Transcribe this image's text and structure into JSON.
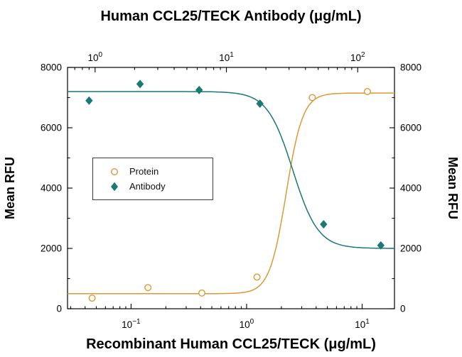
{
  "chart_data": {
    "type": "line",
    "top_axis": {
      "label": "Human CCL25/TECK Antibody (μg/mL)",
      "scale": "log",
      "tick_exponents": [
        0,
        1,
        2
      ],
      "log_range": [
        -0.21,
        2.28
      ]
    },
    "bottom_axis": {
      "label": "Recombinant Human CCL25/TECK (μg/mL)",
      "scale": "log",
      "tick_exponents": [
        -1,
        0,
        1
      ],
      "log_range": [
        -1.55,
        1.28
      ]
    },
    "y_axis": {
      "label_left": "Mean RFU",
      "label_right": "Mean RFU",
      "range": [
        0,
        8000
      ],
      "ticks": [
        0,
        2000,
        4000,
        6000,
        8000
      ],
      "minor_ticks": [
        1000,
        3000,
        5000,
        7000
      ]
    },
    "series": [
      {
        "name": "Protein",
        "axis": "bottom",
        "marker": "open-circle",
        "color": "#DC9A36",
        "x": [
          0.046,
          0.14,
          0.41,
          1.23,
          3.7,
          11.1
        ],
        "y": [
          350,
          700,
          520,
          1050,
          7000,
          7200
        ],
        "curve": {
          "bottom": 500,
          "top": 7150,
          "mid": 2.2,
          "hill": -6
        }
      },
      {
        "name": "Antibody",
        "axis": "top",
        "marker": "filled-diamond",
        "color": "#187A72",
        "x": [
          0.9,
          2.2,
          6.2,
          18,
          55,
          150
        ],
        "y": [
          6900,
          7450,
          7250,
          6800,
          2800,
          2100
        ],
        "curve": {
          "bottom": 2000,
          "top": 7200,
          "mid": 32,
          "hill": 4.5
        }
      }
    ],
    "legend": {
      "entries": [
        "Protein",
        "Antibody"
      ]
    }
  }
}
